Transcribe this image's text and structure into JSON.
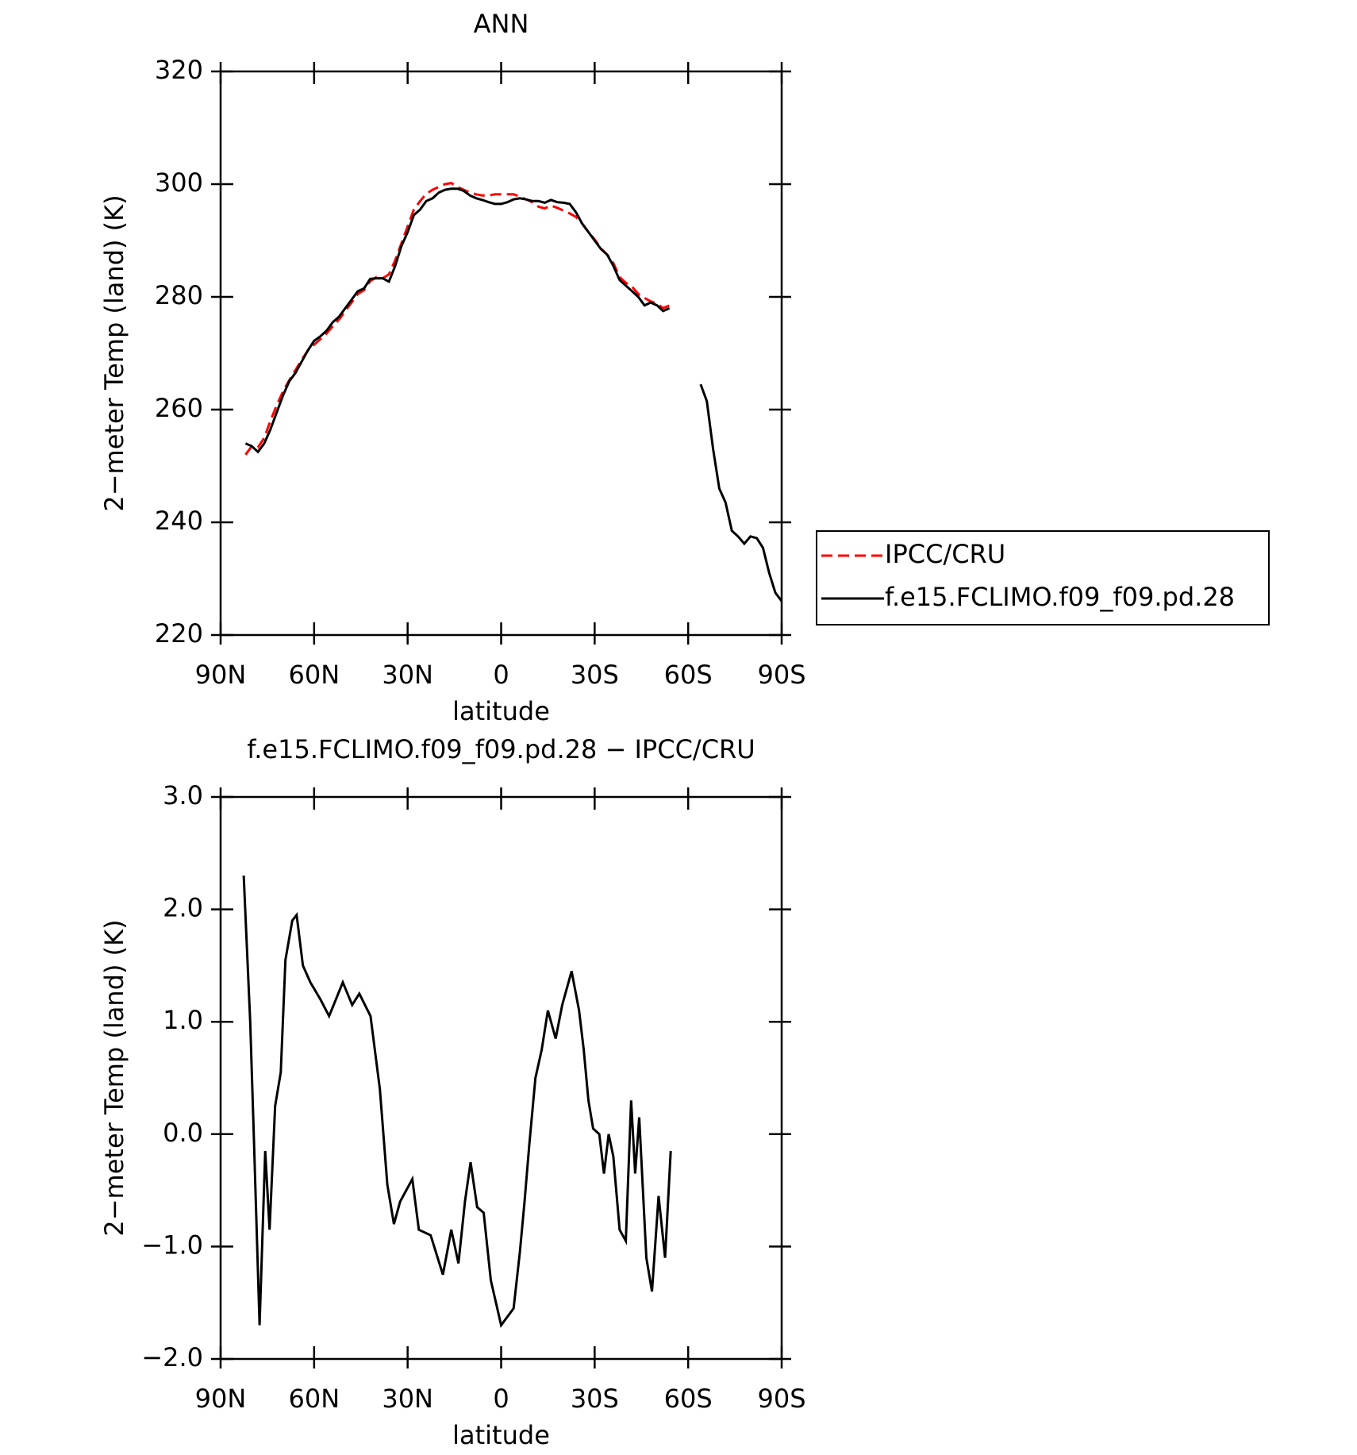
{
  "chart_data": [
    {
      "type": "line",
      "title": "ANN",
      "xlabel": "latitude",
      "ylabel": "2−meter Temp (land) (K)",
      "xlim": [
        90,
        -90
      ],
      "xticks": [
        {
          "value": 90,
          "label": "90N"
        },
        {
          "value": 60,
          "label": "60N"
        },
        {
          "value": 30,
          "label": "30N"
        },
        0,
        {
          "value": -30,
          "label": "30S"
        },
        {
          "value": -60,
          "label": "60S"
        },
        {
          "value": -90,
          "label": "90S"
        }
      ],
      "ylim": [
        220,
        320
      ],
      "yticks": [
        220,
        240,
        260,
        280,
        300,
        320
      ],
      "legend": "right",
      "x": [
        82,
        80,
        78,
        76,
        74,
        72,
        70,
        68,
        66,
        64,
        62,
        60,
        58,
        56,
        54,
        52,
        50,
        48,
        46,
        44,
        42,
        40,
        38,
        36,
        34,
        32,
        30,
        28,
        26,
        24,
        22,
        20,
        18,
        16,
        14,
        12,
        10,
        8,
        6,
        4,
        2,
        0,
        -2,
        -4,
        -6,
        -8,
        -10,
        -12,
        -14,
        -16,
        -18,
        -20,
        -22,
        -24,
        -26,
        -28,
        -30,
        -32,
        -34,
        -36,
        -38,
        -40,
        -42,
        -44,
        -46,
        -48,
        -50,
        -52,
        -54,
        -56,
        -58,
        -60,
        -62,
        -64,
        -66,
        -68,
        -70,
        -72,
        -74,
        -76,
        -78,
        -80,
        -82,
        -84,
        -86,
        -88,
        -90
      ],
      "series": [
        {
          "name": "IPCC/CRU",
          "color": "#ff0000",
          "linestyle": "dashed",
          "values": [
            252,
            253.5,
            253.3,
            255,
            258,
            260.8,
            263.2,
            265.2,
            267,
            268.8,
            270.5,
            271.5,
            272.5,
            273.5,
            274.8,
            276,
            277.5,
            279,
            280.5,
            281.2,
            282.8,
            283.5,
            283.3,
            284,
            286.5,
            289.5,
            292.5,
            295.5,
            297,
            298.3,
            299,
            299.5,
            300,
            300.2,
            299.5,
            299,
            298.5,
            298.2,
            298,
            298,
            298.2,
            298.2,
            298.2,
            298.2,
            297.8,
            297.3,
            296.8,
            296,
            295.7,
            296.2,
            295.8,
            295.3,
            294.8,
            294.2,
            293,
            291.5,
            290.2,
            288.6,
            287.5,
            286,
            283.5,
            282.5,
            281.8,
            280.5,
            279.8,
            279.2,
            278.8,
            278,
            278.5,
            null,
            null,
            null,
            null,
            null,
            null,
            null,
            null,
            null,
            null,
            null,
            null,
            null,
            null,
            null,
            null,
            null,
            null
          ]
        },
        {
          "name": "f.e15.FCLIMO.f09_f09.pd.28",
          "color": "#000000",
          "linestyle": "solid",
          "values": [
            254,
            253.5,
            252.5,
            254,
            256.5,
            259.5,
            262.5,
            265,
            266.5,
            268.5,
            270.5,
            272.2,
            273,
            274,
            275.5,
            276.5,
            278,
            279.5,
            281,
            281.5,
            283.2,
            283.3,
            283.3,
            282.7,
            285.5,
            289,
            291.5,
            294.5,
            295.5,
            297,
            297.5,
            298.5,
            299,
            299.2,
            299.2,
            298.8,
            298,
            297.5,
            297.2,
            296.8,
            296.5,
            296.5,
            296.8,
            297.3,
            297.5,
            297.3,
            297,
            297,
            296.7,
            297.2,
            296.8,
            296.7,
            296.5,
            295,
            293,
            291.5,
            290,
            288.5,
            287.5,
            285.5,
            283,
            282,
            281,
            280,
            278.5,
            279,
            278.5,
            277.5,
            278,
            null,
            null,
            null,
            null,
            264.5,
            261.5,
            253,
            246,
            243.5,
            238.5,
            237.5,
            236.2,
            237.5,
            237.2,
            235.5,
            231,
            227.5,
            226
          ]
        }
      ]
    },
    {
      "type": "line",
      "title": "f.e15.FCLIMO.f09_f09.pd.28 − IPCC/CRU",
      "xlabel": "latitude",
      "ylabel": "2−meter Temp (land) (K)",
      "xlim": [
        90,
        -90
      ],
      "xticks": [
        {
          "value": 90,
          "label": "90N"
        },
        {
          "value": 60,
          "label": "60N"
        },
        {
          "value": 30,
          "label": "30N"
        },
        0,
        {
          "value": -30,
          "label": "30S"
        },
        {
          "value": -60,
          "label": "60S"
        },
        {
          "value": -90,
          "label": "90S"
        }
      ],
      "ylim": [
        -2,
        3
      ],
      "yticks": [
        {
          "value": -2,
          "label": "−2.0"
        },
        {
          "value": -1,
          "label": "−1.0"
        },
        {
          "value": 0,
          "label": "0.0"
        },
        {
          "value": 1,
          "label": "1.0"
        },
        {
          "value": 2,
          "label": "2.0"
        },
        {
          "value": 3,
          "label": "3.0"
        }
      ],
      "x": [
        82.6,
        80.5,
        79.3,
        77.5,
        75.7,
        74.3,
        72.5,
        70.7,
        69.2,
        67,
        65.6,
        63.6,
        61.2,
        58,
        55.2,
        50.8,
        47.8,
        45.5,
        41.9,
        38.9,
        36.5,
        34.4,
        32.4,
        28.5,
        26.4,
        22.6,
        18.7,
        16,
        13.7,
        11.6,
        9.8,
        7.7,
        5.6,
        3.3,
        0,
        -4,
        -6,
        -7.5,
        -9,
        -11,
        -13,
        -15,
        -17.5,
        -19.6,
        -22.6,
        -25,
        -26.5,
        -28,
        -29.5,
        -31.5,
        -33,
        -34.5,
        -36,
        -38,
        -40,
        -41.7,
        -43,
        -44.3,
        -46.6,
        -48.4,
        -50.5,
        -52.6,
        -54.4
      ],
      "series": [
        {
          "color": "#000000",
          "linestyle": "solid",
          "values": [
            2.3,
            1.0,
            -0.05,
            -1.7,
            -0.15,
            -0.85,
            0.25,
            0.55,
            1.55,
            1.9,
            1.95,
            1.5,
            1.35,
            1.2,
            1.05,
            1.35,
            1.15,
            1.25,
            1.05,
            0.4,
            -0.45,
            -0.8,
            -0.6,
            -0.4,
            -0.85,
            -0.9,
            -1.25,
            -0.85,
            -1.15,
            -0.6,
            -0.25,
            -0.65,
            -0.7,
            -1.3,
            -1.7,
            -1.55,
            -1.05,
            -0.6,
            -0.1,
            0.5,
            0.75,
            1.1,
            0.85,
            1.15,
            1.45,
            1.1,
            0.75,
            0.3,
            0.05,
            0.0,
            -0.35,
            0.0,
            -0.2,
            -0.85,
            -0.95,
            0.3,
            -0.35,
            0.15,
            -1.1,
            -1.4,
            -0.55,
            -1.1,
            -0.15
          ]
        }
      ]
    }
  ]
}
